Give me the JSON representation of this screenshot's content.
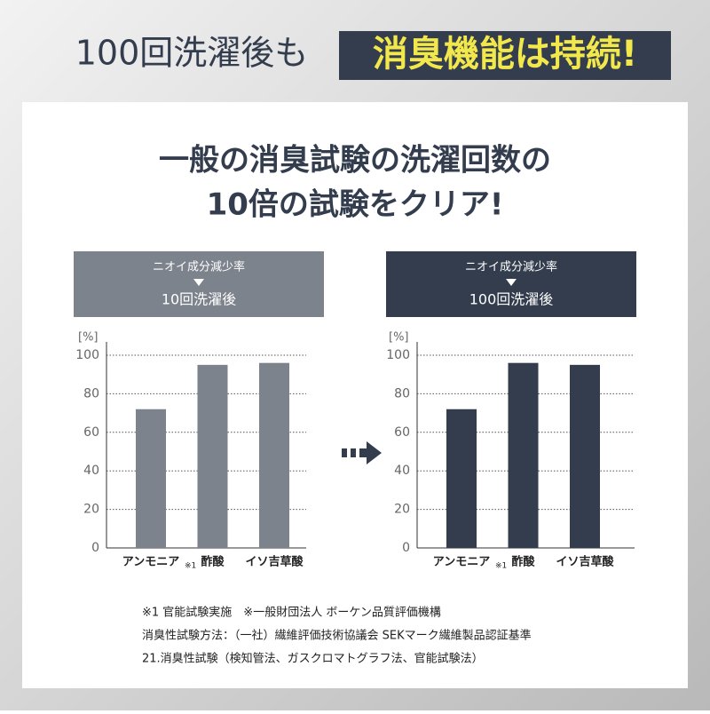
{
  "header": {
    "title_plain": "100回洗濯後も",
    "title_highlight": "消臭機能は持続!"
  },
  "headline": [
    "一般の消臭試験の洗濯回数の",
    "10倍の試験をクリア!"
  ],
  "chart_data": [
    {
      "type": "bar",
      "panel_title": "ニオイ成分減少率",
      "panel_subtitle": "10回洗濯後",
      "y_unit": "[%]",
      "categories": [
        "アンモニア",
        "酢酸",
        "イソ吉草酸"
      ],
      "category_note": "※1",
      "values": [
        72,
        95,
        96
      ],
      "color": "#7d838c",
      "ylim": [
        0,
        100
      ],
      "yticks": [
        0,
        20,
        40,
        60,
        80,
        100
      ],
      "grid": true
    },
    {
      "type": "bar",
      "panel_title": "ニオイ成分減少率",
      "panel_subtitle": "100回洗濯後",
      "y_unit": "[%]",
      "categories": [
        "アンモニア",
        "酢酸",
        "イソ吉草酸"
      ],
      "category_note": "※1",
      "values": [
        72,
        96,
        95
      ],
      "color": "#333d4e",
      "ylim": [
        0,
        100
      ],
      "yticks": [
        0,
        20,
        40,
        60,
        80,
        100
      ],
      "grid": true
    }
  ],
  "notes": [
    "※1 官能試験実施　※一般財団法人 ボーケン品質評価機構",
    "消臭性試験方法：（一社）繊維評価技術協議会 SEKマーク繊維製品認証基準",
    "21.消臭性試験（検知管法、ガスクロマトグラフ法、官能試験法）"
  ]
}
